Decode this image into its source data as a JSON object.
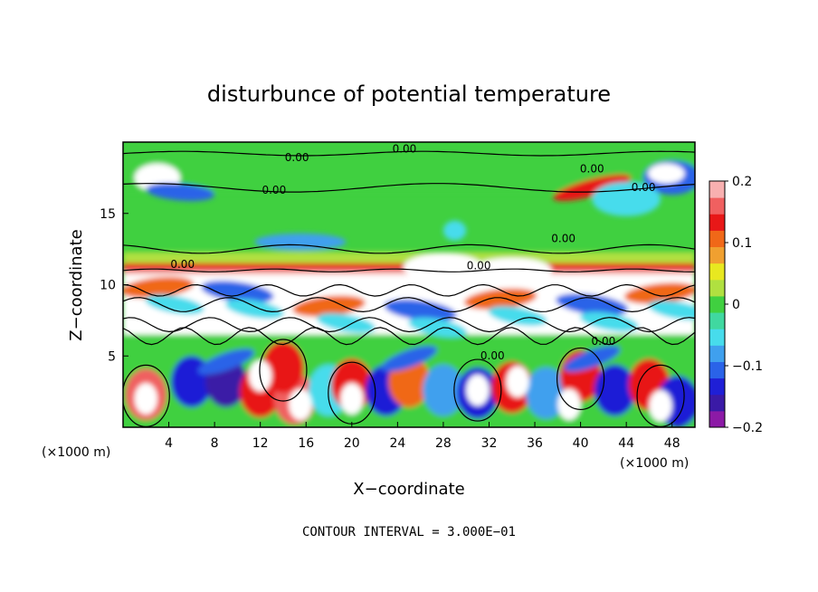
{
  "chart_data": {
    "type": "heatmap",
    "title": "disturbunce of potential temperature",
    "xlabel": "X−coordinate",
    "ylabel": "Z−coordinate",
    "x_unit": "(×1000 m)",
    "y_unit": "(×1000 m)",
    "xlim": [
      0,
      50
    ],
    "ylim": [
      0,
      20
    ],
    "x_ticks": [
      4,
      8,
      12,
      16,
      20,
      24,
      28,
      32,
      36,
      40,
      44,
      48
    ],
    "y_ticks": [
      5,
      10,
      15
    ],
    "colorbar": {
      "range": [
        -0.2,
        0.2
      ],
      "ticks": [
        {
          "value": 0.2,
          "label": "0.2"
        },
        {
          "value": 0.1,
          "label": "0.1"
        },
        {
          "value": 0,
          "label": "0"
        },
        {
          "value": -0.1,
          "label": "−0.1"
        },
        {
          "value": -0.2,
          "label": "−0.2"
        }
      ],
      "colors": [
        "#8c1aa6",
        "#3a1aa6",
        "#1f1fd6",
        "#2a63e8",
        "#3fa0ee",
        "#47dcec",
        "#40d8a0",
        "#40d040",
        "#b0e040",
        "#e8e820",
        "#f0a030",
        "#f06818",
        "#e81818",
        "#f06060",
        "#f8b0b0"
      ]
    },
    "contour_labels": [
      {
        "x": 15.2,
        "z": 18.8,
        "text": "0.00"
      },
      {
        "x": 24.6,
        "z": 19.4,
        "text": "0.00"
      },
      {
        "x": 41.0,
        "z": 18.0,
        "text": "0.00"
      },
      {
        "x": 45.5,
        "z": 16.7,
        "text": "0.00"
      },
      {
        "x": 13.2,
        "z": 16.5,
        "text": "0.00"
      },
      {
        "x": 38.5,
        "z": 13.1,
        "text": "0.00"
      },
      {
        "x": 5.2,
        "z": 11.3,
        "text": "0.00"
      },
      {
        "x": 31.1,
        "z": 11.2,
        "text": "0.00"
      },
      {
        "x": 42.0,
        "z": 5.9,
        "text": "0.00"
      },
      {
        "x": 32.3,
        "z": 4.9,
        "text": "0.00"
      }
    ],
    "contour_interval": "CONTOUR INTERVAL = 3.000E−01"
  }
}
